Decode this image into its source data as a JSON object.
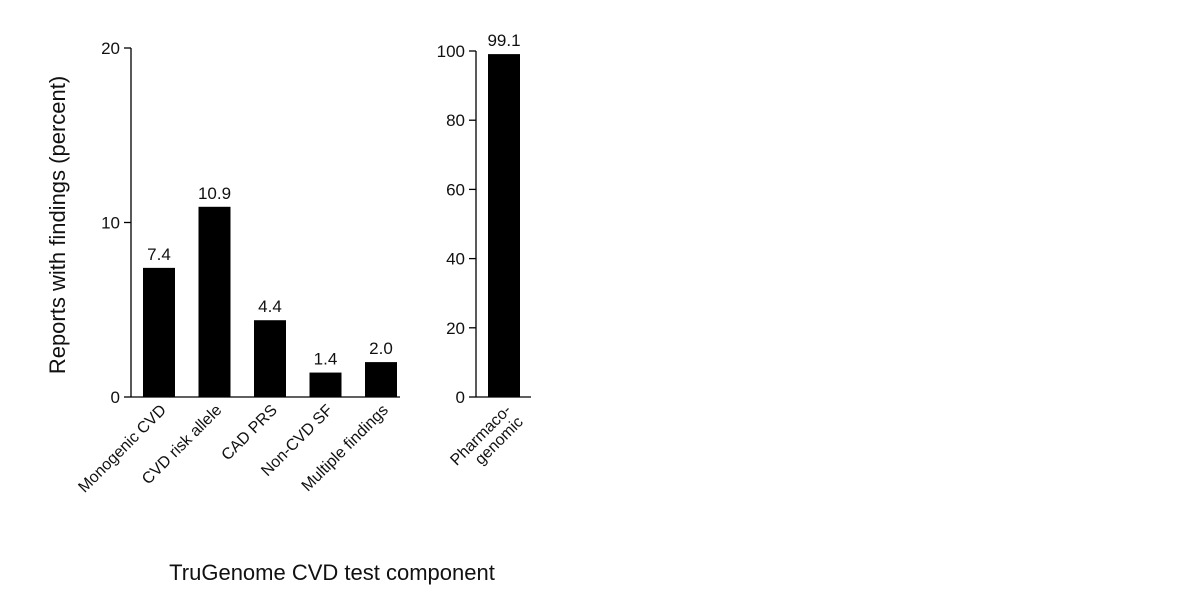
{
  "chart_data": [
    {
      "type": "bar",
      "categories": [
        "Monogenic CVD",
        "CVD risk allele",
        "CAD PRS",
        "Non-CVD SF",
        "Multiple findings"
      ],
      "values": [
        7.4,
        10.9,
        4.4,
        1.4,
        2.0
      ],
      "data_labels": [
        "7.4",
        "10.9",
        "4.4",
        "1.4",
        "2.0"
      ],
      "yticks": [
        "0",
        "10",
        "20"
      ],
      "ylim": [
        0,
        20
      ],
      "ylabel": "Reports with findings (percent)",
      "xlabel": "TruGenome CVD test component",
      "color": "#000000"
    },
    {
      "type": "bar",
      "categories": [
        "Pharmaco-\ngenomic"
      ],
      "category_lines": [
        [
          "Pharmaco-",
          "genomic"
        ]
      ],
      "values": [
        99.1
      ],
      "data_labels": [
        "99.1"
      ],
      "yticks": [
        "0",
        "20",
        "40",
        "60",
        "80",
        "100"
      ],
      "ylim": [
        0,
        100
      ],
      "color": "#000000"
    }
  ]
}
